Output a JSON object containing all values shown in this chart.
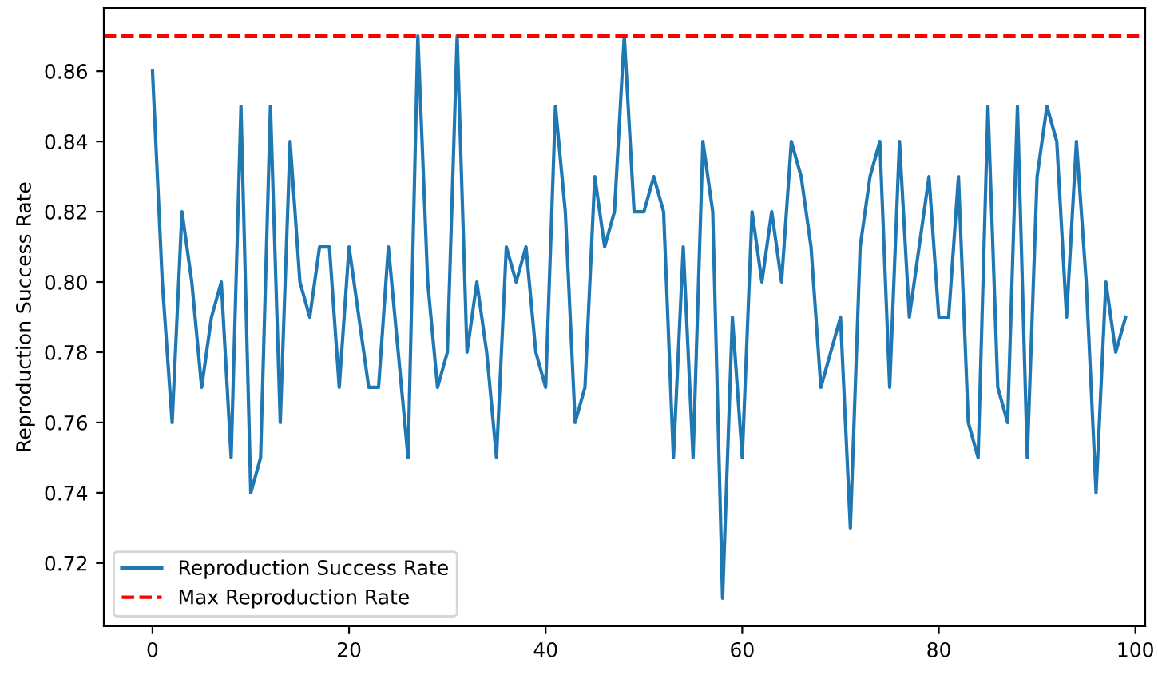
{
  "chart_data": {
    "type": "line",
    "ylabel": "Reproduction Success Rate",
    "x": [
      0,
      1,
      2,
      3,
      4,
      5,
      6,
      7,
      8,
      9,
      10,
      11,
      12,
      13,
      14,
      15,
      16,
      17,
      18,
      19,
      20,
      21,
      22,
      23,
      24,
      25,
      26,
      27,
      28,
      29,
      30,
      31,
      32,
      33,
      34,
      35,
      36,
      37,
      38,
      39,
      40,
      41,
      42,
      43,
      44,
      45,
      46,
      47,
      48,
      49,
      50,
      51,
      52,
      53,
      54,
      55,
      56,
      57,
      58,
      59,
      60,
      61,
      62,
      63,
      64,
      65,
      66,
      67,
      68,
      69,
      70,
      71,
      72,
      73,
      74,
      75,
      76,
      77,
      78,
      79,
      80,
      81,
      82,
      83,
      84,
      85,
      86,
      87,
      88,
      89,
      90,
      91,
      92,
      93,
      94,
      95,
      96,
      97,
      98,
      99
    ],
    "series": [
      {
        "name": "Reproduction Success Rate",
        "color": "#1f77b4",
        "line_style": "solid",
        "values": [
          0.86,
          0.8,
          0.76,
          0.82,
          0.8,
          0.77,
          0.79,
          0.8,
          0.75,
          0.85,
          0.74,
          0.75,
          0.85,
          0.76,
          0.84,
          0.8,
          0.79,
          0.81,
          0.81,
          0.77,
          0.81,
          0.79,
          0.77,
          0.77,
          0.81,
          0.78,
          0.75,
          0.87,
          0.8,
          0.77,
          0.78,
          0.87,
          0.78,
          0.8,
          0.78,
          0.75,
          0.81,
          0.8,
          0.81,
          0.78,
          0.77,
          0.85,
          0.82,
          0.76,
          0.77,
          0.83,
          0.81,
          0.82,
          0.87,
          0.82,
          0.82,
          0.83,
          0.82,
          0.75,
          0.81,
          0.75,
          0.84,
          0.82,
          0.71,
          0.79,
          0.75,
          0.82,
          0.8,
          0.82,
          0.8,
          0.84,
          0.83,
          0.81,
          0.77,
          0.78,
          0.79,
          0.73,
          0.81,
          0.83,
          0.84,
          0.77,
          0.84,
          0.79,
          0.81,
          0.83,
          0.79,
          0.79,
          0.83,
          0.76,
          0.75,
          0.85,
          0.77,
          0.76,
          0.85,
          0.75,
          0.83,
          0.85,
          0.84,
          0.79,
          0.84,
          0.8,
          0.74,
          0.8,
          0.78,
          0.79
        ]
      }
    ],
    "ref_lines": [
      {
        "axis": "y",
        "value": 0.87,
        "label": "Max Reproduction Rate",
        "color": "#ff0000",
        "line_style": "dashed"
      }
    ],
    "xlim": [
      -4.95,
      101
    ],
    "xticks": [
      0,
      20,
      40,
      60,
      80,
      100
    ],
    "ylim": [
      0.702,
      0.878
    ],
    "yticks": [
      {
        "value": 0.72,
        "label": "0.72"
      },
      {
        "value": 0.74,
        "label": "0.74"
      },
      {
        "value": 0.76,
        "label": "0.76"
      },
      {
        "value": 0.78,
        "label": "0.78"
      },
      {
        "value": 0.8,
        "label": "0.80"
      },
      {
        "value": 0.82,
        "label": "0.82"
      },
      {
        "value": 0.84,
        "label": "0.84"
      },
      {
        "value": 0.86,
        "label": "0.86"
      }
    ],
    "grid": false,
    "legend": "bottom left",
    "marker": "none"
  }
}
